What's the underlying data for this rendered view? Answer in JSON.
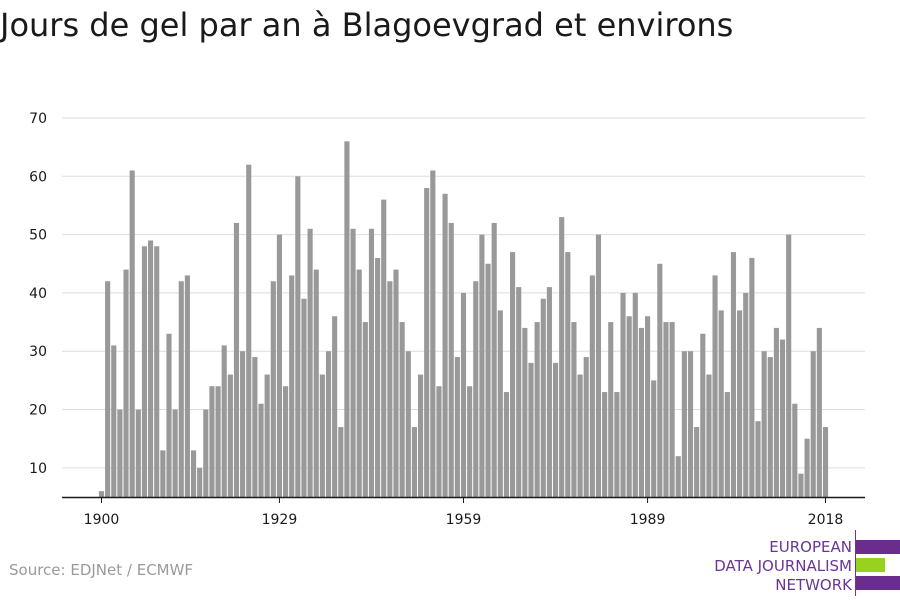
{
  "chart_data": {
    "type": "bar",
    "title": "Jours de gel par an à Blagoevgrad et environs",
    "xlabel": "",
    "ylabel": "",
    "x_start": 1900,
    "x_end": 2018,
    "xticks": [
      1900,
      1929,
      1959,
      1989,
      2018
    ],
    "yticks": [
      10,
      20,
      30,
      40,
      50,
      60,
      70
    ],
    "ylim": [
      5,
      70
    ],
    "grid": true,
    "bar_color": "#999999",
    "values": [
      6,
      42,
      31,
      20,
      44,
      61,
      20,
      48,
      49,
      48,
      13,
      33,
      20,
      42,
      43,
      13,
      10,
      20,
      24,
      24,
      31,
      26,
      52,
      30,
      62,
      29,
      21,
      26,
      42,
      50,
      24,
      43,
      60,
      39,
      51,
      44,
      26,
      30,
      36,
      17,
      66,
      51,
      44,
      35,
      51,
      46,
      56,
      42,
      44,
      35,
      30,
      17,
      26,
      58,
      61,
      24,
      57,
      52,
      29,
      40,
      24,
      42,
      50,
      45,
      52,
      37,
      23,
      47,
      41,
      34,
      28,
      35,
      39,
      41,
      28,
      53,
      47,
      35,
      26,
      29,
      43,
      50,
      23,
      35,
      23,
      40,
      36,
      40,
      34,
      36,
      25,
      45,
      35,
      35,
      12,
      30,
      30,
      17,
      33,
      26,
      43,
      37,
      23,
      47,
      37,
      40,
      46,
      18,
      30,
      29,
      34,
      32,
      50,
      21,
      9,
      15,
      30,
      34,
      17
    ]
  },
  "source": "Source: EDJNet / ECMWF",
  "logo": {
    "line1": "EUROPEAN",
    "line2": "DATA JOURNALISM",
    "line3": "NETWORK"
  },
  "colors": {
    "bar": "#999999",
    "grid": "#dddddd",
    "axis": "#1a1a1a",
    "logo_purple": "#6a2d8e",
    "logo_green": "#96d21e"
  }
}
